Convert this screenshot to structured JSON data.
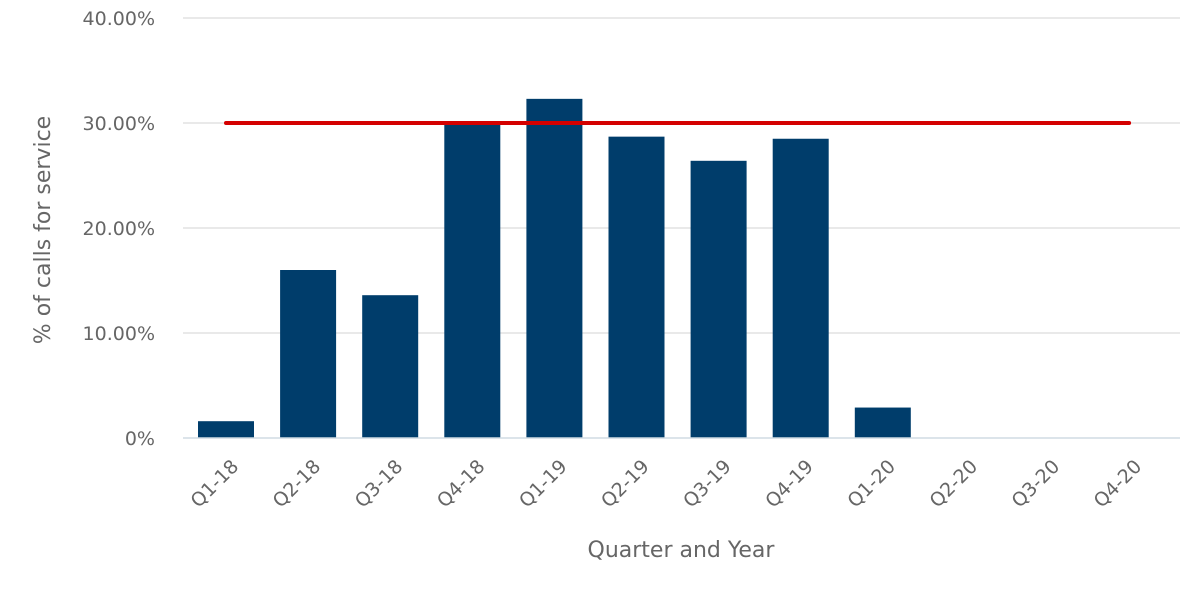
{
  "chart_data": {
    "type": "bar",
    "xlabel": "Quarter and Year",
    "ylabel": "% of calls for service",
    "categories": [
      "Q1-18",
      "Q2-18",
      "Q3-18",
      "Q4-18",
      "Q1-19",
      "Q2-19",
      "Q3-19",
      "Q4-19",
      "Q1-20",
      "Q2-20",
      "Q3-20",
      "Q4-20"
    ],
    "series": [
      {
        "values": [
          1.6,
          16.0,
          13.6,
          30.0,
          32.3,
          28.7,
          26.4,
          28.5,
          2.9,
          null,
          null,
          null
        ],
        "color": "#003d6b"
      }
    ],
    "reference_line": {
      "value": 30.0,
      "color": "#d40000"
    },
    "ylim": [
      0,
      40
    ],
    "yticks": [
      0,
      10,
      20,
      30,
      40
    ],
    "ytick_labels": [
      "0%",
      "10.00%",
      "20.00%",
      "30.00%",
      "40.00%"
    ],
    "grid": true,
    "legend": "none"
  }
}
